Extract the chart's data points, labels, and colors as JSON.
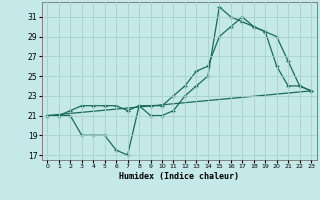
{
  "xlabel": "Humidex (Indice chaleur)",
  "bg_color": "#c5e8e8",
  "grid_color": "#a8d0d0",
  "line_color": "#1a6b5a",
  "xlim": [
    -0.5,
    23.5
  ],
  "ylim": [
    16.5,
    32.5
  ],
  "xticks": [
    0,
    1,
    2,
    3,
    4,
    5,
    6,
    7,
    8,
    9,
    10,
    11,
    12,
    13,
    14,
    15,
    16,
    17,
    18,
    19,
    20,
    21,
    22,
    23
  ],
  "yticks": [
    17,
    19,
    21,
    23,
    25,
    27,
    29,
    31
  ],
  "line1_x": [
    0,
    1,
    2,
    3,
    4,
    5,
    6,
    7,
    8,
    9,
    10,
    11,
    12,
    13,
    14,
    15,
    16,
    17,
    18,
    19,
    20,
    21,
    22,
    23
  ],
  "line1_y": [
    21,
    21,
    21,
    19,
    19,
    19,
    17.5,
    17,
    22,
    21,
    21,
    21.5,
    23,
    24,
    25,
    32,
    31,
    30.5,
    30,
    29.5,
    26,
    24,
    24,
    23.5
  ],
  "line2_x": [
    0,
    1,
    2,
    3,
    4,
    5,
    6,
    7,
    8,
    9,
    10,
    11,
    12,
    13,
    14,
    15,
    16,
    17,
    18,
    19,
    20,
    21,
    22,
    23
  ],
  "line2_y": [
    21,
    21,
    21.5,
    22,
    22,
    22,
    22,
    21.5,
    22,
    22,
    22,
    23,
    24,
    25.5,
    26,
    29,
    30,
    31,
    30,
    29.5,
    29,
    26.5,
    24,
    23.5
  ],
  "line3_x": [
    0,
    23
  ],
  "line3_y": [
    21,
    23.5
  ]
}
